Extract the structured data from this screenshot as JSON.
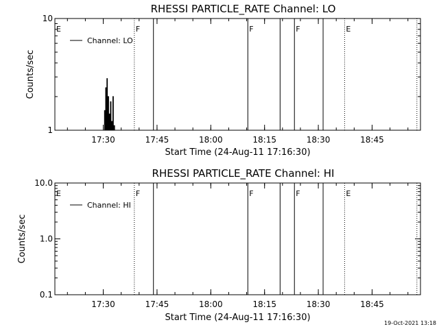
{
  "timestamp": "19-Oct-2021 13:18",
  "chart_data": [
    {
      "type": "line",
      "title": "RHESSI PARTICLE_RATE Channel: LO",
      "xlabel": "Start Time (24-Aug-11 17:16:30)",
      "ylabel": "Counts/sec",
      "y_scale": "log",
      "ylim": [
        1,
        10
      ],
      "y_ticks": [
        "1",
        "10"
      ],
      "x_ticks": [
        "17:30",
        "17:45",
        "18:00",
        "18:15",
        "18:30",
        "18:45"
      ],
      "xlim": [
        "17:16:30",
        "18:58:30"
      ],
      "legend": {
        "entry": "Channel: LO",
        "placement": "top-left"
      },
      "series": [
        {
          "name": "Channel: LO",
          "x": [
            "17:29:50",
            "17:30:20",
            "17:30:40",
            "17:31:00",
            "17:31:20",
            "17:31:40",
            "17:32:00",
            "17:32:20",
            "17:32:40",
            "17:33:00",
            "17:33:20"
          ],
          "y": [
            1.0,
            1.5,
            2.4,
            2.9,
            2.0,
            1.4,
            1.8,
            1.2,
            2.0,
            1.1,
            1.0
          ]
        }
      ],
      "flags": [
        {
          "label": "E",
          "time": "17:16:30",
          "style": "dotted"
        },
        {
          "label": "F",
          "time": "17:38:40",
          "style": "dotted"
        },
        {
          "label": "",
          "time": "17:44:00",
          "style": "solid"
        },
        {
          "label": "F",
          "time": "18:10:20",
          "style": "solid"
        },
        {
          "label": "",
          "time": "18:19:20",
          "style": "solid"
        },
        {
          "label": "F",
          "time": "18:23:20",
          "style": "solid"
        },
        {
          "label": "",
          "time": "18:31:20",
          "style": "solid"
        },
        {
          "label": "E",
          "time": "18:37:20",
          "style": "dotted"
        },
        {
          "label": "",
          "time": "18:57:30",
          "style": "dotted"
        }
      ]
    },
    {
      "type": "line",
      "title": "RHESSI PARTICLE_RATE Channel: HI",
      "xlabel": "Start Time (24-Aug-11 17:16:30)",
      "ylabel": "Counts/sec",
      "y_scale": "log",
      "ylim": [
        0.1,
        10
      ],
      "y_ticks": [
        "0.1",
        "1.0",
        "10.0"
      ],
      "x_ticks": [
        "17:30",
        "17:45",
        "18:00",
        "18:15",
        "18:30",
        "18:45"
      ],
      "xlim": [
        "17:16:30",
        "18:58:30"
      ],
      "legend": {
        "entry": "Channel: HI",
        "placement": "top-left"
      },
      "series": [
        {
          "name": "Channel: HI",
          "x": [],
          "y": []
        }
      ],
      "flags": [
        {
          "label": "E",
          "time": "17:16:30",
          "style": "dotted"
        },
        {
          "label": "F",
          "time": "17:38:40",
          "style": "dotted"
        },
        {
          "label": "",
          "time": "17:44:00",
          "style": "solid"
        },
        {
          "label": "F",
          "time": "18:10:20",
          "style": "solid"
        },
        {
          "label": "",
          "time": "18:19:20",
          "style": "solid"
        },
        {
          "label": "F",
          "time": "18:23:20",
          "style": "solid"
        },
        {
          "label": "",
          "time": "18:31:20",
          "style": "solid"
        },
        {
          "label": "E",
          "time": "18:37:20",
          "style": "dotted"
        },
        {
          "label": "",
          "time": "18:57:30",
          "style": "dotted"
        }
      ]
    }
  ]
}
